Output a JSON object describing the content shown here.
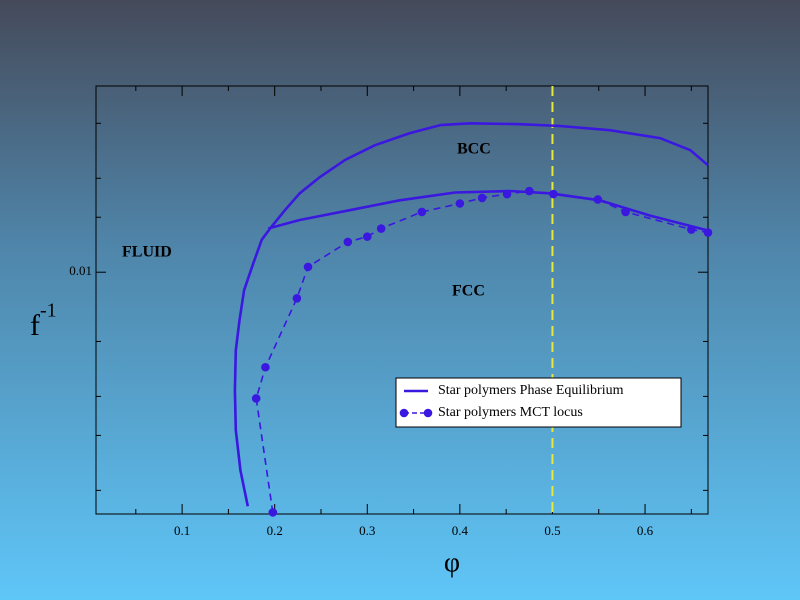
{
  "chart_data": {
    "type": "line",
    "xlabel": "φ",
    "ylabel": "f",
    "ylabel_superscript": "-1",
    "xlim": [
      0.007,
      0.668
    ],
    "ylim": [
      0.00168,
      0.0395
    ],
    "ylog": true,
    "xticks": [
      0.1,
      0.2,
      0.3,
      0.4,
      0.5,
      0.6
    ],
    "xminor_ticks": [
      0.05,
      0.15,
      0.25,
      0.35,
      0.45,
      0.55,
      0.65
    ],
    "yticks": [
      0.01
    ],
    "yminor_ticks": [
      0.002,
      0.003,
      0.004,
      0.006,
      0.015,
      0.02,
      0.03
    ],
    "vline": {
      "x": 0.5,
      "color": "#e8e83a"
    },
    "legend": "lower right",
    "annotations": [
      "FLUID",
      "BCC",
      "FCC"
    ],
    "series": [
      {
        "name": "Star polymers  Phase Equilibrium",
        "color": "#3a18e0",
        "style": "solid",
        "x": [
          0.171,
          0.163,
          0.158,
          0.157,
          0.158,
          0.162,
          0.167,
          0.176,
          0.186,
          0.195,
          0.211,
          0.227,
          0.249,
          0.276,
          0.308,
          0.346,
          0.379,
          0.411,
          0.465,
          0.508,
          0.562,
          0.616,
          0.649,
          0.668,
          null,
          0.193,
          0.227,
          0.281,
          0.335,
          0.395,
          0.454,
          0.497,
          0.551,
          0.605,
          0.668
        ],
        "values": [
          0.00178,
          0.00232,
          0.00312,
          0.00419,
          0.00562,
          0.00702,
          0.00876,
          0.0105,
          0.0127,
          0.0138,
          0.0158,
          0.0179,
          0.0202,
          0.0229,
          0.0255,
          0.0279,
          0.0296,
          0.03,
          0.0298,
          0.0294,
          0.0285,
          0.0269,
          0.0246,
          0.022,
          null,
          0.0138,
          0.0147,
          0.0158,
          0.017,
          0.018,
          0.0182,
          0.0179,
          0.017,
          0.0152,
          0.0136
        ]
      },
      {
        "name": "Star polymers MCT locus",
        "color": "#3a18e0",
        "style": "dashed",
        "markers": true,
        "x": [
          0.198,
          0.18,
          0.19,
          0.224,
          0.236,
          0.279,
          0.3,
          0.315,
          0.359,
          0.4,
          0.424,
          0.451,
          0.475,
          0.501,
          0.549,
          0.579,
          0.65,
          0.668
        ],
        "values": [
          0.0017,
          0.00394,
          0.00496,
          0.00825,
          0.0104,
          0.0125,
          0.013,
          0.0138,
          0.0156,
          0.0166,
          0.0173,
          0.0178,
          0.0182,
          0.0178,
          0.0171,
          0.0156,
          0.0137,
          0.0134
        ]
      }
    ]
  }
}
